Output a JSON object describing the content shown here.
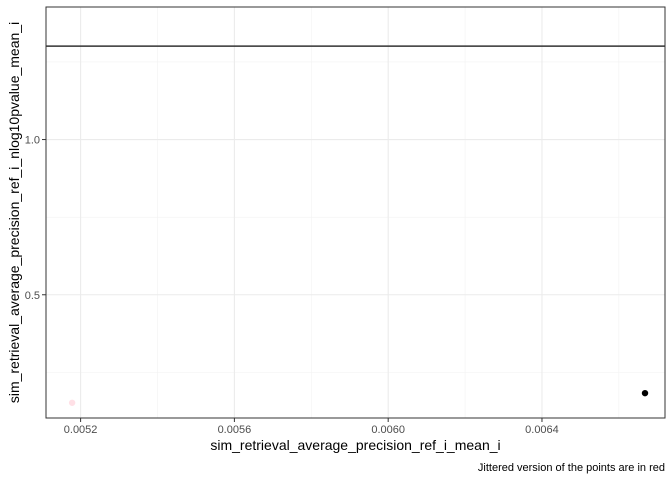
{
  "chart_data": {
    "type": "scatter",
    "title": "",
    "xlabel": "sim_retrieval_average_precision_ref_i_mean_i",
    "ylabel": "sim_retrieval_average_precision_ref_i_nlog10pvalue_mean_i",
    "caption": "Jittered version of the points are in red",
    "xlim": [
      0.00511,
      0.00672
    ],
    "ylim": [
      0.103,
      1.427
    ],
    "x_ticks": [
      0.0052,
      0.0056,
      0.006,
      0.0064
    ],
    "x_tick_labels": [
      "0.0052",
      "0.0056",
      "0.0060",
      "0.0064"
    ],
    "y_ticks": [
      0.5,
      1.0
    ],
    "y_tick_labels": [
      "0.5",
      "1.0"
    ],
    "x_minor_ticks": [
      0.0054,
      0.0058,
      0.0062,
      0.0066
    ],
    "y_minor_ticks": [
      0.25,
      0.75,
      1.25
    ],
    "grid": true,
    "hline": {
      "y": 1.301,
      "color": "#333333"
    },
    "series": [
      {
        "role": "points",
        "color": "#000000",
        "points": [
          {
            "x": 0.006668,
            "y": 0.183
          }
        ]
      },
      {
        "role": "jittered",
        "color": "#ffe0e6",
        "points": [
          {
            "x": 0.005178,
            "y": 0.152
          }
        ]
      }
    ]
  }
}
